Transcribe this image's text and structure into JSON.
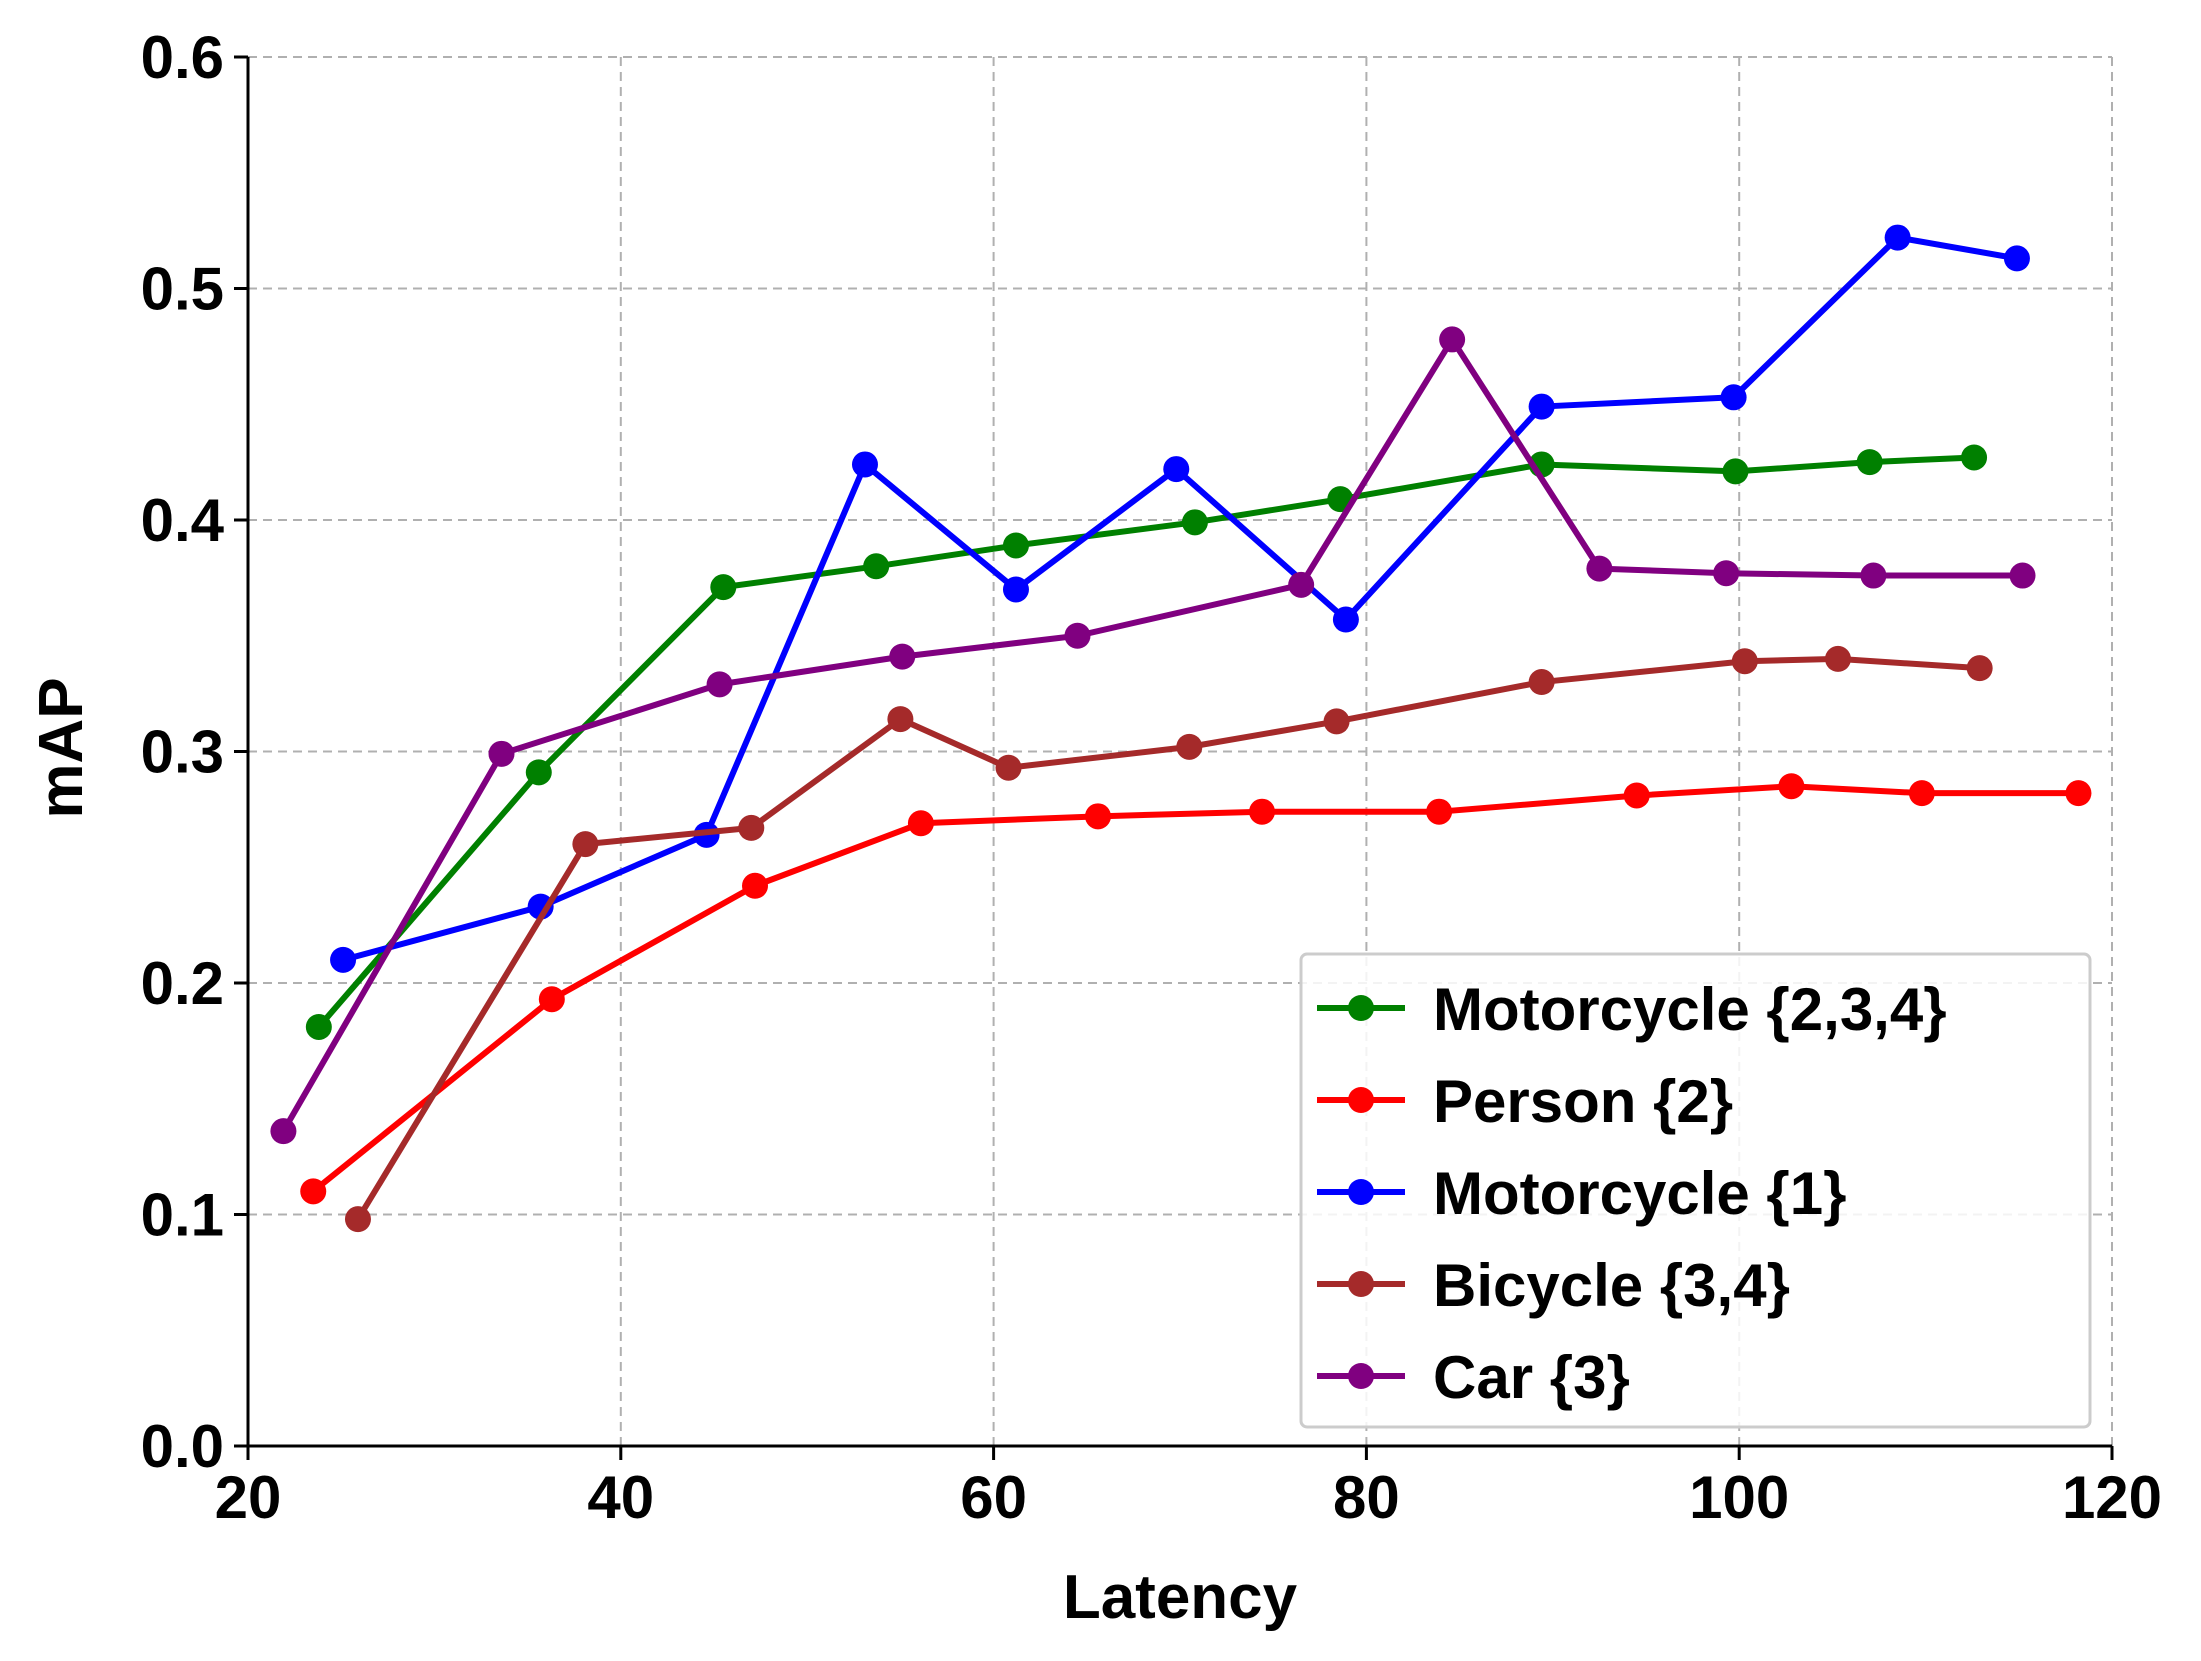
{
  "chart_data": {
    "type": "line",
    "title": "",
    "xlabel": "Latency",
    "ylabel": "mAP",
    "xlim": [
      20,
      120
    ],
    "ylim": [
      0.0,
      0.6
    ],
    "xticks": [
      20,
      40,
      60,
      80,
      100,
      120
    ],
    "yticks": [
      0.0,
      0.1,
      0.2,
      0.3,
      0.4,
      0.5,
      0.6
    ],
    "xtick_labels": [
      "20",
      "40",
      "60",
      "80",
      "100",
      "120"
    ],
    "ytick_labels": [
      "0.0",
      "0.1",
      "0.2",
      "0.3",
      "0.4",
      "0.5",
      "0.6"
    ],
    "grid": true,
    "legend_position": "bottom-right",
    "series": [
      {
        "name": "Motorcycle {2,3,4}",
        "color": "#008000",
        "points": [
          [
            23.8,
            0.181
          ],
          [
            35.6,
            0.291
          ],
          [
            45.5,
            0.371
          ],
          [
            53.7,
            0.38
          ],
          [
            61.2,
            0.389
          ],
          [
            70.8,
            0.399
          ],
          [
            78.6,
            0.409
          ],
          [
            89.4,
            0.424
          ],
          [
            99.8,
            0.421
          ],
          [
            107.0,
            0.425
          ],
          [
            112.6,
            0.427
          ]
        ]
      },
      {
        "name": "Person {2}",
        "color": "#ff0000",
        "points": [
          [
            23.5,
            0.11
          ],
          [
            36.3,
            0.193
          ],
          [
            47.2,
            0.242
          ],
          [
            56.1,
            0.269
          ],
          [
            65.6,
            0.272
          ],
          [
            74.4,
            0.274
          ],
          [
            83.9,
            0.274
          ],
          [
            94.5,
            0.281
          ],
          [
            102.8,
            0.285
          ],
          [
            109.8,
            0.282
          ],
          [
            118.2,
            0.282
          ]
        ]
      },
      {
        "name": "Motorcycle {1}",
        "color": "#0000ff",
        "points": [
          [
            25.1,
            0.21
          ],
          [
            35.7,
            0.233
          ],
          [
            44.6,
            0.264
          ],
          [
            53.1,
            0.424
          ],
          [
            61.2,
            0.37
          ],
          [
            69.8,
            0.422
          ],
          [
            78.9,
            0.357
          ],
          [
            89.4,
            0.449
          ],
          [
            99.7,
            0.453
          ],
          [
            108.5,
            0.522
          ],
          [
            114.9,
            0.513
          ]
        ]
      },
      {
        "name": "Bicycle {3,4}",
        "color": "#a52a2a",
        "points": [
          [
            25.9,
            0.098
          ],
          [
            38.1,
            0.26
          ],
          [
            47.0,
            0.267
          ],
          [
            55.0,
            0.314
          ],
          [
            60.8,
            0.293
          ],
          [
            70.5,
            0.302
          ],
          [
            78.4,
            0.313
          ],
          [
            89.4,
            0.33
          ],
          [
            100.3,
            0.339
          ],
          [
            105.3,
            0.34
          ],
          [
            112.9,
            0.336
          ]
        ]
      },
      {
        "name": "Car {3}",
        "color": "#800080",
        "points": [
          [
            21.9,
            0.136
          ],
          [
            33.6,
            0.299
          ],
          [
            45.3,
            0.329
          ],
          [
            55.1,
            0.341
          ],
          [
            64.5,
            0.35
          ],
          [
            76.5,
            0.372
          ],
          [
            84.6,
            0.478
          ],
          [
            92.5,
            0.379
          ],
          [
            99.3,
            0.377
          ],
          [
            107.2,
            0.376
          ],
          [
            115.2,
            0.376
          ]
        ]
      }
    ]
  }
}
